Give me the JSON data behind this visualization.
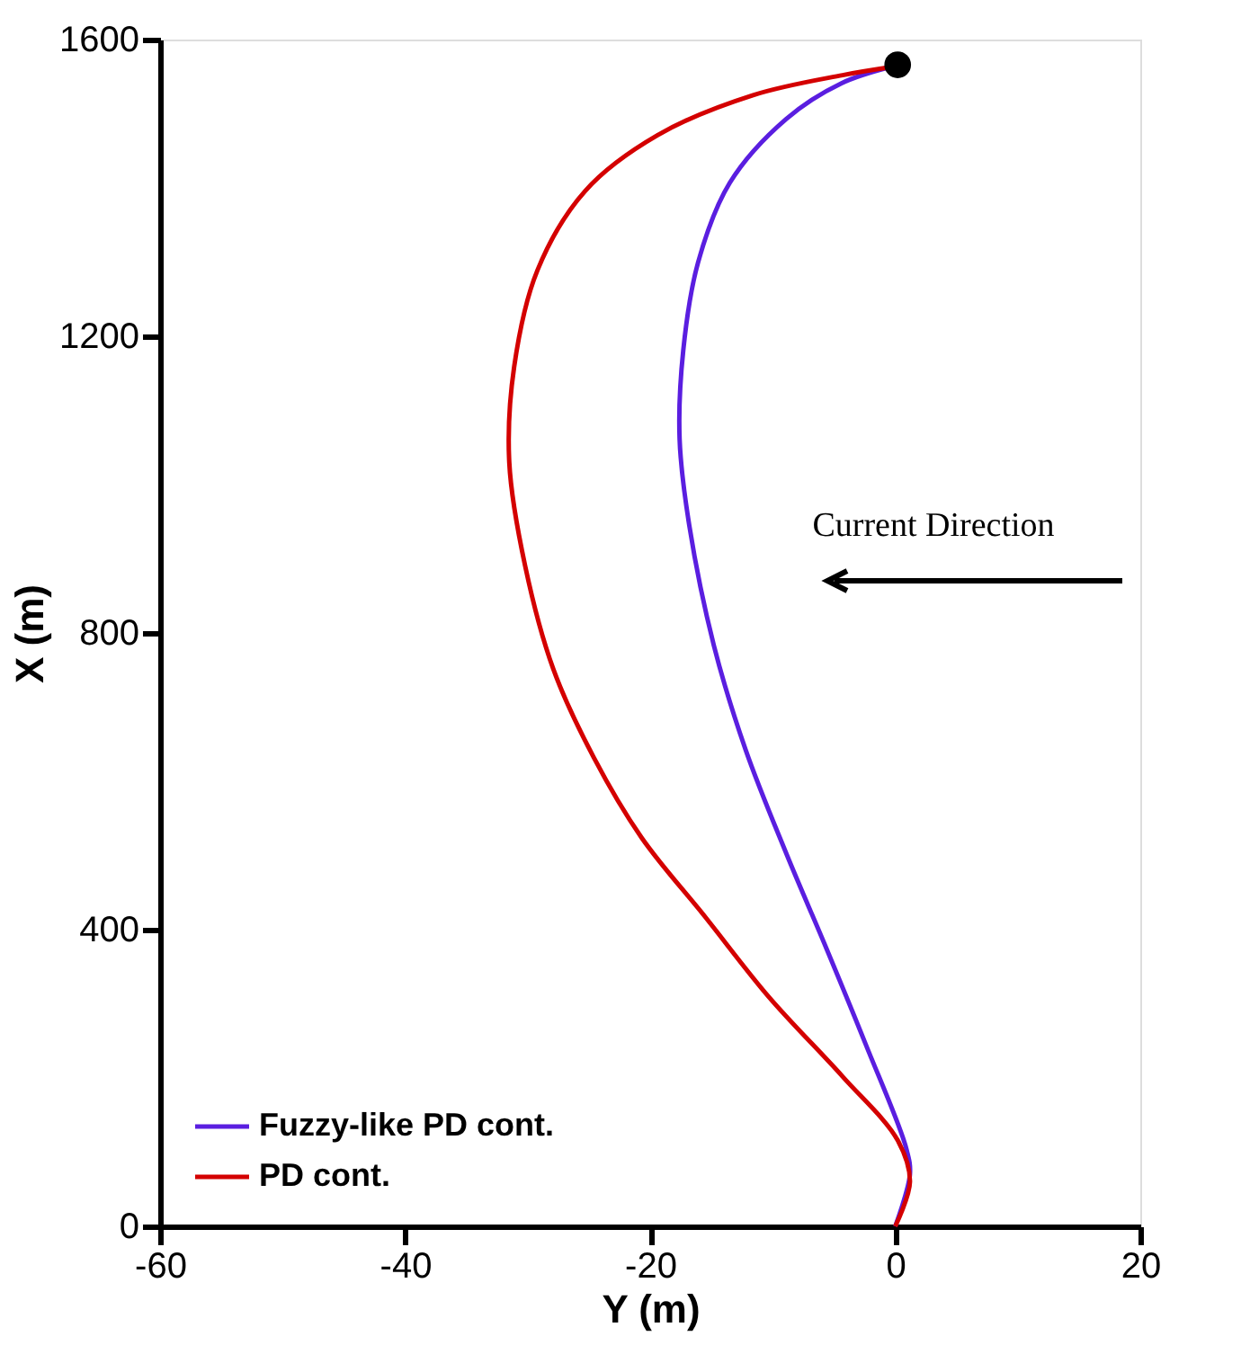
{
  "chart_data": {
    "type": "line",
    "xlabel": "Y (m)",
    "ylabel": "X (m)",
    "xlim": [
      -60,
      20
    ],
    "xticks": [
      -60,
      -40,
      -20,
      0,
      20
    ],
    "ylim": [
      0,
      1600
    ],
    "yticks": [
      0,
      400,
      800,
      1200,
      1600
    ],
    "grid": false,
    "legend": "bottom left",
    "marker": "none",
    "line_style": "solid",
    "annotations": [
      "Current Direction"
    ],
    "series": [
      {
        "name": "Fuzzy-like PD cont.",
        "color": "#5a1ee0",
        "x": [
          0,
          1.2,
          0.9,
          -2.4,
          -5.6,
          -8.9,
          -12.2,
          -14.8,
          -16.8,
          -17.6,
          -17.3,
          -16.1,
          -13.5,
          -8.9,
          -4.4,
          -0.4
        ],
        "values": [
          0,
          70,
          105,
          245,
          374,
          503,
          642,
          783,
          944,
          1062,
          1181,
          1299,
          1407,
          1493,
          1541,
          1563
        ]
      },
      {
        "name": "PD cont.",
        "color": "#d40000",
        "x": [
          0,
          1.2,
          0.2,
          -4.3,
          -10.3,
          -15.5,
          -20.7,
          -24.6,
          -27.9,
          -30.2,
          -31.5,
          -31.1,
          -29.2,
          -25.3,
          -19.4,
          -11.6,
          -4.3,
          -0.3
        ],
        "values": [
          0,
          60,
          116,
          202,
          309,
          417,
          524,
          632,
          751,
          890,
          1030,
          1159,
          1289,
          1396,
          1471,
          1525,
          1552,
          1563
        ]
      },
      {
        "type": "scatter",
        "marker": "circle",
        "color": "#000000",
        "x": [
          0.2
        ],
        "values": [
          1566
        ]
      }
    ]
  }
}
